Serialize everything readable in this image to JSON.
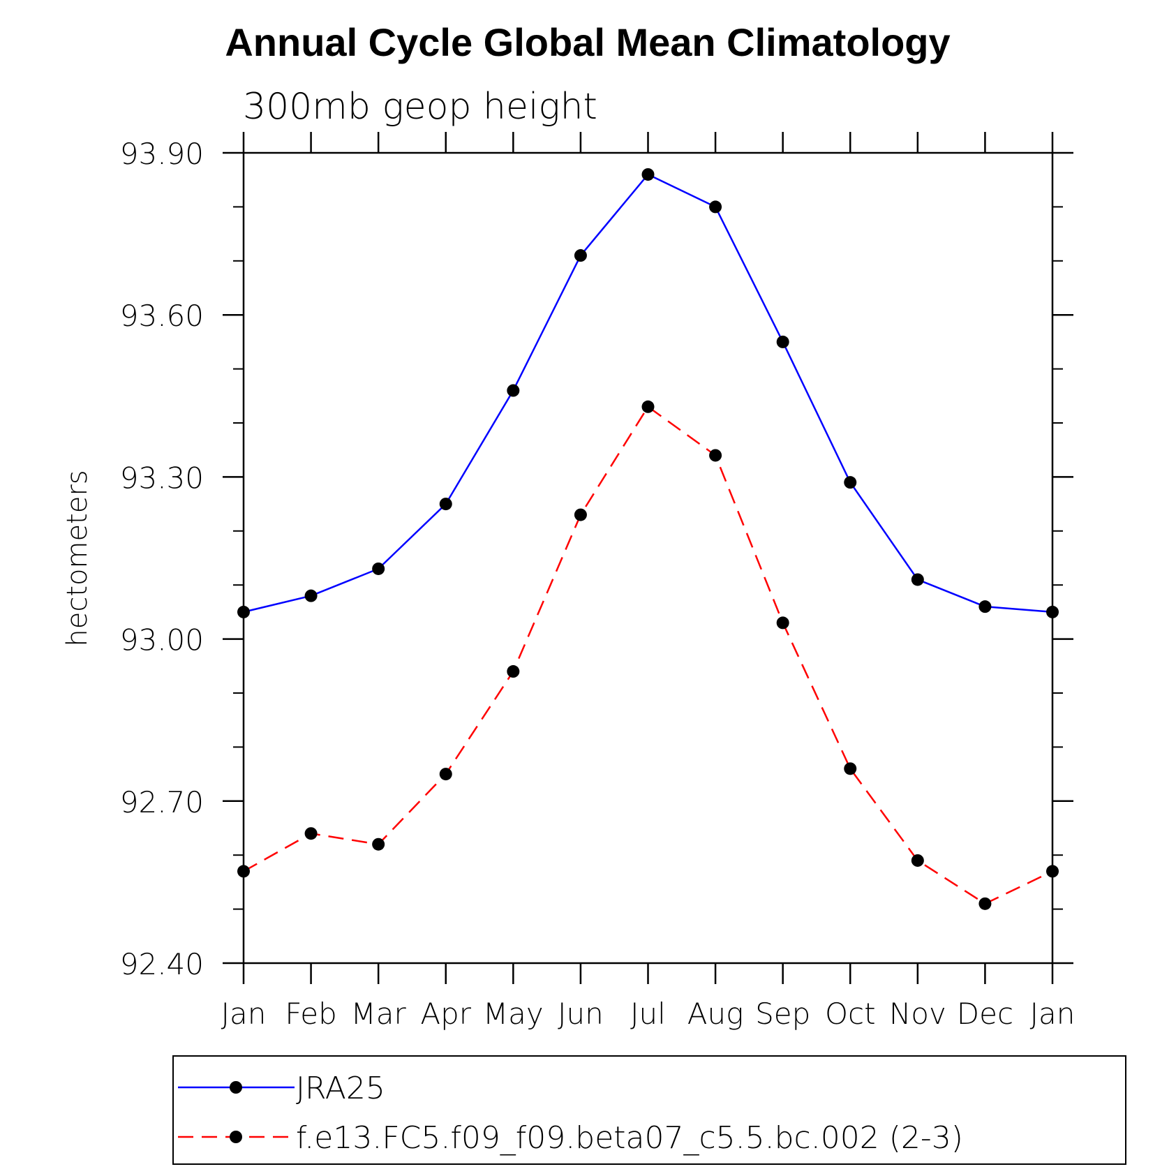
{
  "chart_data": {
    "type": "line",
    "title": "Annual Cycle Global Mean Climatology",
    "subtitle": "300mb geop height",
    "xlabel": "",
    "ylabel": "hectometers",
    "categories": [
      "Jan",
      "Feb",
      "Mar",
      "Apr",
      "May",
      "Jun",
      "Jul",
      "Aug",
      "Sep",
      "Oct",
      "Nov",
      "Dec",
      "Jan"
    ],
    "ylim": [
      92.4,
      93.9
    ],
    "yticks": [
      92.4,
      92.7,
      93.0,
      93.3,
      93.6,
      93.9
    ],
    "ytick_labels": [
      "92.40",
      "92.70",
      "93.00",
      "93.30",
      "93.60",
      "93.90"
    ],
    "yminor_step": 0.1,
    "series": [
      {
        "name": "JRA25",
        "color": "#0000ff",
        "dash": "solid",
        "values": [
          93.05,
          93.08,
          93.13,
          93.25,
          93.46,
          93.71,
          93.86,
          93.8,
          93.55,
          93.29,
          93.11,
          93.06,
          93.05
        ]
      },
      {
        "name": "f.e13.FC5.f09_f09.beta07_c5.5.bc.002 (2-3)",
        "color": "#ff0000",
        "dash": "dashed",
        "values": [
          92.57,
          92.64,
          92.62,
          92.75,
          92.94,
          93.23,
          93.43,
          93.34,
          93.03,
          92.76,
          92.59,
          92.51,
          92.57
        ]
      }
    ],
    "marker_color": "#000000",
    "legend_position": "bottom",
    "grid": false
  }
}
